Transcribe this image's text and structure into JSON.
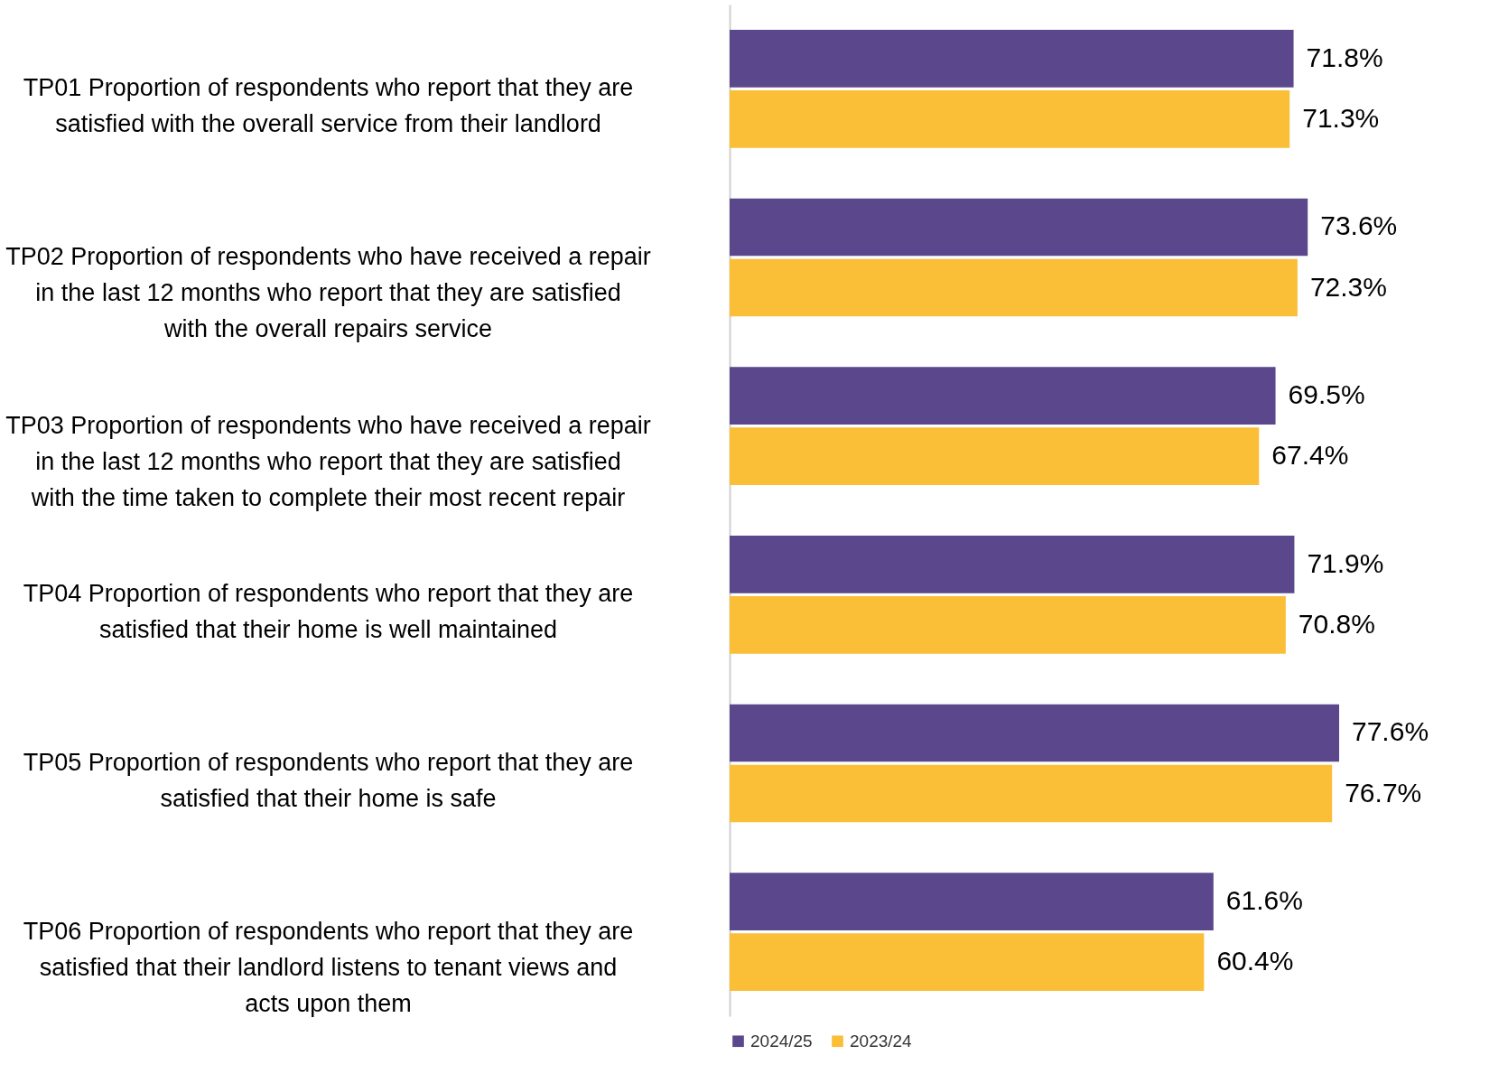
{
  "chart_data": {
    "type": "bar",
    "orientation": "horizontal",
    "categories": [
      "TP01 Proportion of respondents who report that they are satisfied with the overall service from their landlord",
      "TP02 Proportion of respondents who have received a repair in the last 12 months who report that they are satisfied with the overall repairs service",
      "TP03 Proportion of respondents who have received a repair in the last 12 months who report that they are satisfied with the time taken to complete their most recent repair",
      "TP04 Proportion of respondents who report that they are satisfied that their home is well maintained",
      "TP05 Proportion of respondents who report that they are satisfied that their home is safe",
      "TP06 Proportion of respondents who report that they are satisfied that their landlord listens to tenant views and acts upon them"
    ],
    "series": [
      {
        "name": "2024/25",
        "color": "#5b478b",
        "values": [
          71.8,
          73.6,
          69.5,
          71.9,
          77.6,
          61.6
        ],
        "value_labels": [
          "71.8%",
          "73.6%",
          "69.5%",
          "71.9%",
          "77.6%",
          "61.6%"
        ]
      },
      {
        "name": "2023/24",
        "color": "#fbbe37",
        "values": [
          71.3,
          72.3,
          67.4,
          70.8,
          76.7,
          60.4
        ],
        "value_labels": [
          "71.3%",
          "72.3%",
          "67.4%",
          "70.8%",
          "76.7%",
          "60.4%"
        ]
      }
    ],
    "legend": "bottom",
    "tick_labels": "y"
  }
}
